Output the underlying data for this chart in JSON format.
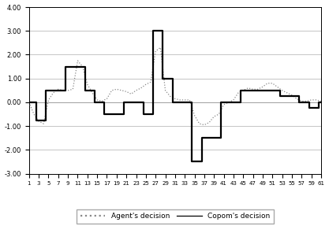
{
  "copom_decision": [
    0.0,
    0.0,
    -0.75,
    -0.75,
    0.5,
    0.5,
    0.5,
    0.5,
    1.5,
    1.5,
    1.5,
    1.5,
    0.5,
    0.5,
    0.0,
    0.0,
    -0.5,
    -0.5,
    -0.5,
    -0.5,
    0.0,
    0.0,
    0.0,
    0.0,
    -0.5,
    -0.5,
    3.0,
    3.0,
    1.0,
    1.0,
    0.0,
    0.0,
    0.0,
    0.0,
    -2.5,
    -2.5,
    -1.5,
    -1.5,
    -1.5,
    -1.5,
    0.0,
    0.0,
    0.0,
    0.0,
    0.5,
    0.5,
    0.5,
    0.5,
    0.5,
    0.5,
    0.5,
    0.5,
    0.25,
    0.25,
    0.25,
    0.25,
    0.0,
    0.0,
    -0.25,
    -0.25,
    0.0
  ],
  "agent_decision": [
    0.0,
    -0.5,
    -0.8,
    -0.9,
    0.1,
    0.4,
    0.55,
    0.5,
    0.5,
    0.55,
    1.75,
    1.5,
    0.75,
    0.4,
    0.1,
    0.05,
    0.15,
    0.5,
    0.55,
    0.5,
    0.45,
    0.35,
    0.5,
    0.6,
    0.75,
    0.85,
    2.15,
    2.3,
    0.5,
    0.25,
    0.15,
    0.1,
    0.1,
    0.1,
    -0.55,
    -0.9,
    -0.95,
    -0.85,
    -0.6,
    -0.5,
    -0.1,
    0.0,
    0.1,
    0.4,
    0.5,
    0.6,
    0.55,
    0.55,
    0.65,
    0.8,
    0.8,
    0.65,
    0.5,
    0.4,
    0.3,
    0.15,
    0.05,
    0.05,
    0.1,
    0.1,
    0.05
  ],
  "x_ticks": [
    1,
    3,
    5,
    7,
    9,
    11,
    13,
    15,
    17,
    19,
    21,
    23,
    25,
    27,
    29,
    31,
    33,
    35,
    37,
    39,
    41,
    43,
    45,
    47,
    49,
    51,
    53,
    55,
    57,
    59,
    61
  ],
  "x_tick_labels": [
    "1",
    "3",
    "5",
    "7",
    "9",
    "11",
    "13",
    "15",
    "17",
    "19",
    "21",
    "23",
    "25",
    "27",
    "29",
    "31",
    "33",
    "35",
    "37",
    "39",
    "41",
    "43",
    "45",
    "47",
    "49",
    "51",
    "53",
    "55",
    "57",
    "59",
    "61"
  ],
  "ylim": [
    -3.0,
    4.0
  ],
  "yticks": [
    -3.0,
    -2.0,
    -1.0,
    0.0,
    1.0,
    2.0,
    3.0,
    4.0
  ],
  "ytick_labels": [
    "-3.00",
    "-2.00",
    "-1.00",
    "0.00",
    "1.00",
    "2.00",
    "3.00",
    "4.00"
  ],
  "copom_color": "#000000",
  "agent_color": "#888888",
  "background_color": "#ffffff",
  "legend_copom": "Copom's decision",
  "legend_agent": "Agent's decision",
  "grid_color": "#bbbbbb",
  "zero_line_color": "#999999"
}
